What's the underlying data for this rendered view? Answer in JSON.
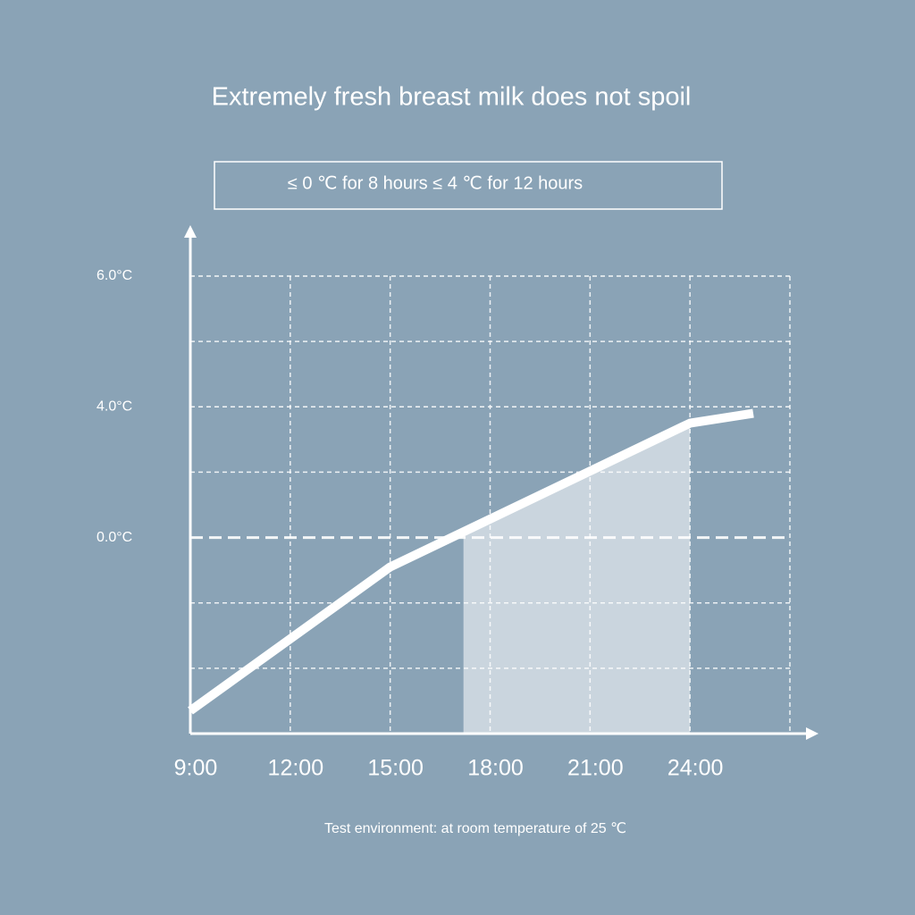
{
  "chart_data": {
    "type": "line",
    "title": "Extremely fresh breast milk does not spoil",
    "subtitle": "≤ 0 ℃ for 8 hours ≤ 4 ℃ for 12 hours",
    "footnote": "Test environment: at room temperature of 25 ℃",
    "x": [
      9,
      15,
      24,
      25.9
    ],
    "series": [
      {
        "color": "#ffffff",
        "values": [
          -5.3,
          -0.9,
          3.5,
          3.8
        ]
      }
    ],
    "highlight_range": [
      17.2,
      24
    ],
    "xlim": [
      9,
      27
    ],
    "xticks": [
      {
        "value": 9,
        "label": "9:00"
      },
      {
        "value": 12,
        "label": "12:00"
      },
      {
        "value": 15,
        "label": "15:00"
      },
      {
        "value": 18,
        "label": "18:00"
      },
      {
        "value": 21,
        "label": "21:00"
      },
      {
        "value": 24,
        "label": "24:00"
      }
    ],
    "ylim": [
      -6,
      6
    ],
    "yticks": [
      {
        "value": 6,
        "label": "6.0°C"
      },
      {
        "value": 4,
        "label": "4.0°C"
      },
      {
        "value": 0,
        "label": "0.0°C"
      }
    ],
    "grid": true
  }
}
